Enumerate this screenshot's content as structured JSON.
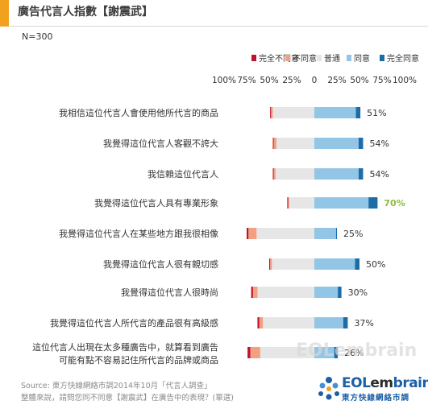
{
  "header": {
    "title": "廣告代言人指數【謝震武】",
    "sample_size": "N=300",
    "accent_color": "#f2a11f"
  },
  "chart_data": {
    "type": "bar",
    "subtype": "diverging stacked bar",
    "legend_position": "top-right",
    "x_ticks": [
      "100%",
      "75%",
      "50%",
      "25%",
      "0",
      "25%",
      "50%",
      "75%",
      "100%"
    ],
    "xlim": [
      -100,
      100
    ],
    "categories": [
      "我相信這位代言人會使用他所代言的商品",
      "我覺得這位代言人客觀不誇大",
      "我信賴這位代言人",
      "我覺得這位代言人具有專業形象",
      "我覺得這位代言人在某些地方跟我很相像",
      "我覺得這位代言人很有親切感",
      "我覺得這位代言人很時尚",
      "我覺得這位代言人所代言的產品很有高級感",
      "這位代言人出現在太多種廣告中，就算看到廣告，可能有點不容易記住所代言的品牌或商品"
    ],
    "series": [
      {
        "name": "完全不同意",
        "color": "#c0122d",
        "values": [
          1,
          1,
          1,
          1,
          2,
          1,
          2,
          2,
          3
        ]
      },
      {
        "name": "不同意",
        "color": "#f2a080",
        "values": [
          2,
          3,
          2,
          1,
          9,
          2,
          5,
          4,
          11
        ]
      },
      {
        "name": "普通",
        "color": "#e6e6e6",
        "values": [
          46,
          42,
          43,
          28,
          64,
          47,
          63,
          57,
          60
        ]
      },
      {
        "name": "同意",
        "color": "#93c5e6",
        "values": [
          46,
          49,
          49,
          60,
          24,
          45,
          26,
          32,
          22
        ]
      },
      {
        "name": "完全同意",
        "color": "#1c6ca8",
        "values": [
          5,
          5,
          5,
          10,
          1,
          5,
          4,
          5,
          4
        ]
      }
    ],
    "agree_labels": [
      "51%",
      "54%",
      "54%",
      "70%",
      "25%",
      "50%",
      "30%",
      "37%",
      "26%"
    ],
    "highlight_index": 3,
    "highlight_color": "#8cbc3c"
  },
  "footer": {
    "source": "Source: 東方快線網絡市調2014年10月「代言人調查」",
    "question": "整體來說，請問您同不同意【謝震武】在廣告中的表現？(單選)",
    "watermark": "EOLembrain",
    "logo_name_a": "EOL",
    "logo_name_b": "em",
    "logo_name_c": "brain",
    "logo_sub": "東方快線網絡市調",
    "logo_color": "#1a5fa8"
  }
}
